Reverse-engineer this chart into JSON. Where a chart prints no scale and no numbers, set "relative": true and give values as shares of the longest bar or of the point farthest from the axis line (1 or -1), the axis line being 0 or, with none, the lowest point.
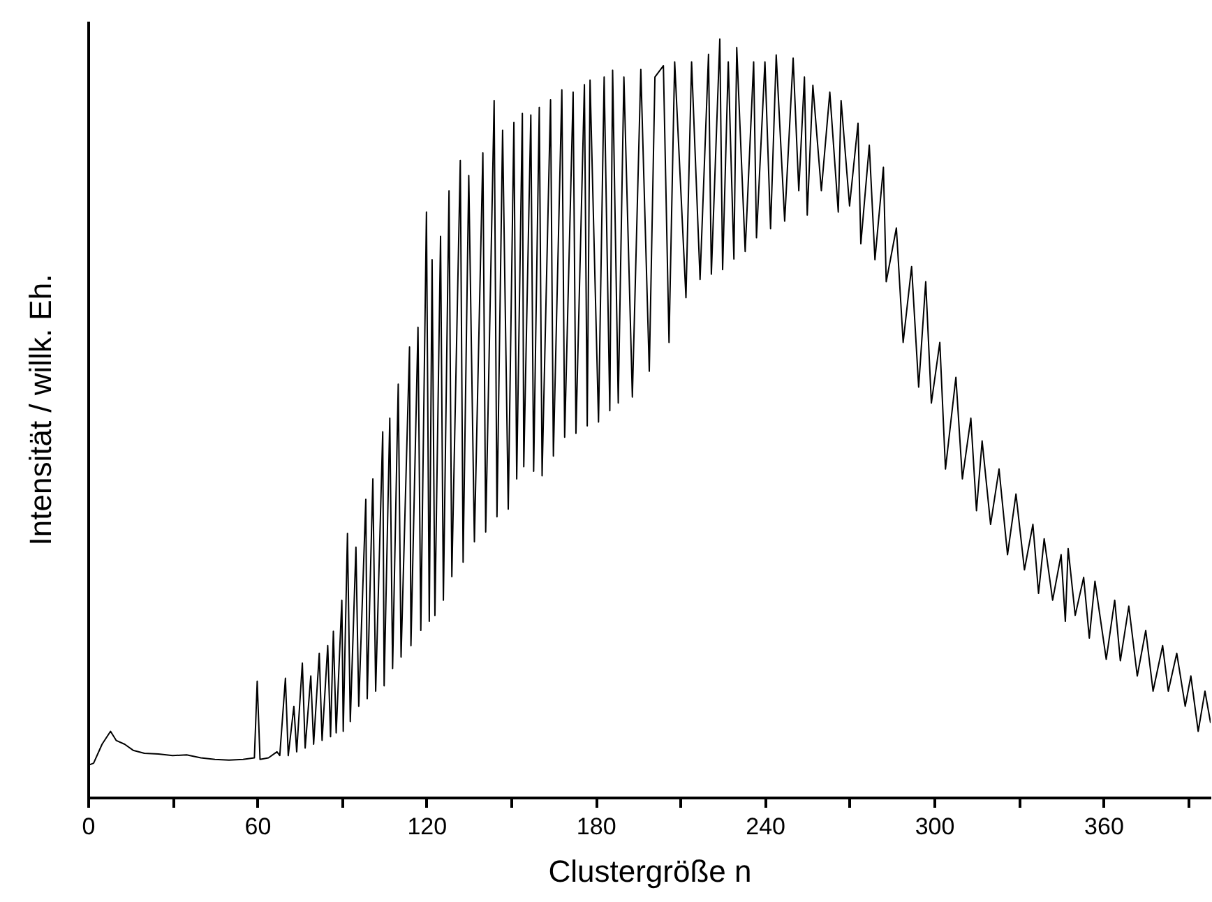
{
  "chart_data": {
    "type": "line",
    "relative": true,
    "xlabel": "Clustergröße  n",
    "ylabel": "Intensität / willk. Eh.",
    "xlim": [
      0,
      398
    ],
    "xticks": [
      0,
      {
        "value": 30,
        "label": null
      },
      60,
      {
        "value": 90,
        "label": null
      },
      120,
      {
        "value": 150,
        "label": null
      },
      180,
      {
        "value": 210,
        "label": null
      },
      240,
      {
        "value": 270,
        "label": null
      },
      300,
      {
        "value": 330,
        "label": null
      },
      360,
      {
        "value": 390,
        "label": null
      }
    ],
    "grid": false,
    "marker": "none",
    "line_style": "solid",
    "series": [
      {
        "color": "#000000",
        "x": [
          0,
          2,
          5,
          8,
          10,
          13,
          16,
          20,
          25,
          30,
          35,
          40,
          45,
          50,
          55,
          59,
          60,
          61,
          64,
          67,
          68,
          70,
          71,
          73,
          74,
          76,
          77,
          79,
          80,
          82,
          83,
          85,
          86,
          87,
          88,
          90,
          90.5,
          92,
          93,
          95,
          96,
          98.5,
          99,
          101,
          102,
          104.5,
          105,
          107,
          108,
          110,
          111,
          114,
          114.5,
          117,
          118,
          120,
          121,
          122,
          123,
          125,
          126,
          128,
          129,
          132,
          133,
          135,
          137,
          140,
          141,
          144,
          145,
          147,
          149,
          151,
          152,
          154,
          154.5,
          157,
          158,
          160,
          161,
          164,
          165,
          168,
          169,
          172,
          173,
          176,
          177,
          178,
          181,
          183,
          185,
          186,
          188,
          190,
          193,
          196,
          199,
          201,
          204,
          206,
          208,
          212,
          214,
          217,
          220,
          221,
          224,
          225,
          227,
          229,
          230,
          233,
          236,
          237,
          240,
          242,
          244,
          247,
          250,
          252,
          254,
          255,
          257,
          260,
          263,
          266,
          267,
          270,
          273,
          274,
          277,
          279,
          282,
          283,
          286.6,
          289,
          292,
          294.5,
          297,
          299,
          302,
          304,
          307.7,
          310,
          313,
          315,
          317,
          320,
          323,
          326,
          329,
          332,
          335,
          337,
          339,
          342,
          345,
          346.5,
          347.5,
          350,
          353,
          355,
          357,
          361,
          364,
          366,
          369,
          372,
          375,
          377.6,
          381,
          383,
          386,
          389,
          391,
          393.6,
          396,
          398
        ],
        "values": [
          0.042,
          0.045,
          0.07,
          0.087,
          0.075,
          0.07,
          0.062,
          0.058,
          0.057,
          0.055,
          0.056,
          0.052,
          0.05,
          0.049,
          0.05,
          0.052,
          0.153,
          0.05,
          0.052,
          0.06,
          0.055,
          0.157,
          0.055,
          0.12,
          0.06,
          0.177,
          0.065,
          0.16,
          0.07,
          0.19,
          0.075,
          0.2,
          0.08,
          0.219,
          0.085,
          0.26,
          0.087,
          0.348,
          0.1,
          0.33,
          0.12,
          0.393,
          0.13,
          0.42,
          0.14,
          0.482,
          0.147,
          0.5,
          0.17,
          0.545,
          0.185,
          0.594,
          0.2,
          0.62,
          0.22,
          0.772,
          0.232,
          0.709,
          0.24,
          0.74,
          0.26,
          0.8,
          0.291,
          0.84,
          0.31,
          0.82,
          0.337,
          0.85,
          0.35,
          0.919,
          0.37,
          0.88,
          0.38,
          0.89,
          0.42,
          0.902,
          0.436,
          0.9,
          0.43,
          0.91,
          0.424,
          0.92,
          0.45,
          0.933,
          0.475,
          0.93,
          0.48,
          0.94,
          0.49,
          0.946,
          0.495,
          0.95,
          0.51,
          0.959,
          0.52,
          0.95,
          0.528,
          0.96,
          0.562,
          0.95,
          0.965,
          0.6,
          0.97,
          0.659,
          0.97,
          0.683,
          0.98,
          0.69,
          1.0,
          0.696,
          0.97,
          0.71,
          0.989,
          0.72,
          0.97,
          0.738,
          0.97,
          0.75,
          0.979,
          0.76,
          0.975,
          0.8,
          0.95,
          0.768,
          0.939,
          0.8,
          0.93,
          0.772,
          0.919,
          0.78,
          0.889,
          0.73,
          0.86,
          0.709,
          0.831,
          0.68,
          0.751,
          0.6,
          0.7,
          0.541,
          0.68,
          0.52,
          0.6,
          0.433,
          0.554,
          0.42,
          0.5,
          0.378,
          0.47,
          0.36,
          0.433,
          0.32,
          0.4,
          0.3,
          0.36,
          0.269,
          0.341,
          0.26,
          0.32,
          0.232,
          0.328,
          0.24,
          0.29,
          0.21,
          0.285,
          0.182,
          0.26,
          0.18,
          0.252,
          0.16,
          0.22,
          0.14,
          0.2,
          0.14,
          0.19,
          0.12,
          0.16,
          0.087,
          0.14,
          0.098
        ]
      }
    ]
  }
}
